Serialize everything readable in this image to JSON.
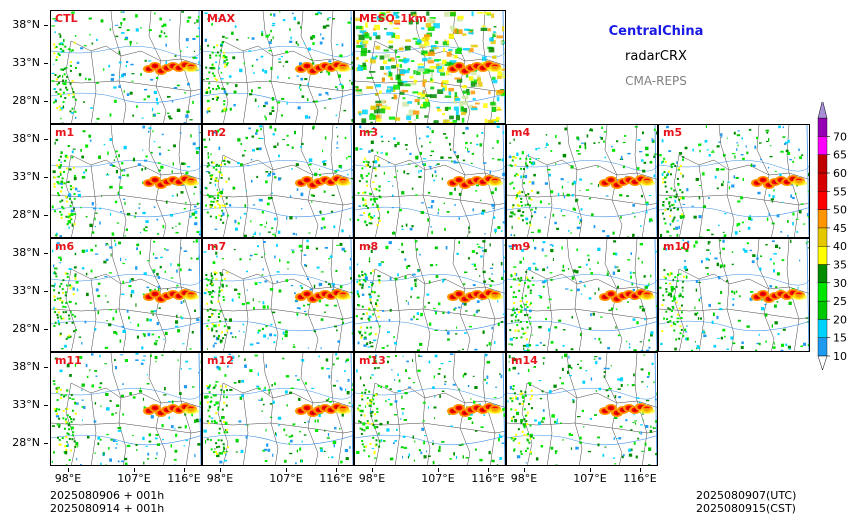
{
  "header": {
    "region": "CentralChina",
    "product": "radarCRX",
    "system": "CMA-REPS",
    "region_color": "#1a1ae6",
    "system_color": "#808080"
  },
  "panels": [
    {
      "label": "CTL",
      "row": 0,
      "col": 0
    },
    {
      "label": "MAX",
      "row": 0,
      "col": 1
    },
    {
      "label": "MESO_1km",
      "row": 0,
      "col": 2
    },
    {
      "label": "m1",
      "row": 1,
      "col": 0
    },
    {
      "label": "m2",
      "row": 1,
      "col": 1
    },
    {
      "label": "m3",
      "row": 1,
      "col": 2
    },
    {
      "label": "m4",
      "row": 1,
      "col": 3
    },
    {
      "label": "m5",
      "row": 1,
      "col": 4
    },
    {
      "label": "m6",
      "row": 2,
      "col": 0
    },
    {
      "label": "m7",
      "row": 2,
      "col": 1
    },
    {
      "label": "m8",
      "row": 2,
      "col": 2
    },
    {
      "label": "m9",
      "row": 2,
      "col": 3
    },
    {
      "label": "m10",
      "row": 2,
      "col": 4
    },
    {
      "label": "m11",
      "row": 3,
      "col": 0
    },
    {
      "label": "m12",
      "row": 3,
      "col": 1
    },
    {
      "label": "m13",
      "row": 3,
      "col": 2
    },
    {
      "label": "m14",
      "row": 3,
      "col": 3
    }
  ],
  "axes": {
    "lat_ticks": [
      "38°N",
      "33°N",
      "28°N"
    ],
    "lon_ticks": [
      "98°E",
      "107°E",
      "116°E"
    ]
  },
  "colorbar": {
    "levels": [
      "10",
      "15",
      "20",
      "25",
      "30",
      "35",
      "40",
      "45",
      "50",
      "55",
      "60",
      "65",
      "70"
    ],
    "colors": [
      "#1e9bf0",
      "#00d2ff",
      "#00c800",
      "#00e600",
      "#008c00",
      "#ffff00",
      "#e6c800",
      "#ff9600",
      "#ff0000",
      "#d70000",
      "#c00000",
      "#ff00ff",
      "#9600b4"
    ],
    "extend_high_color": "#a890d8"
  },
  "footer": {
    "init_line1": "2025080906  +  001h",
    "init_line2": "2025080914  +  001h",
    "valid_utc": "2025080907(UTC)",
    "valid_cst": "2025080915(CST)"
  }
}
